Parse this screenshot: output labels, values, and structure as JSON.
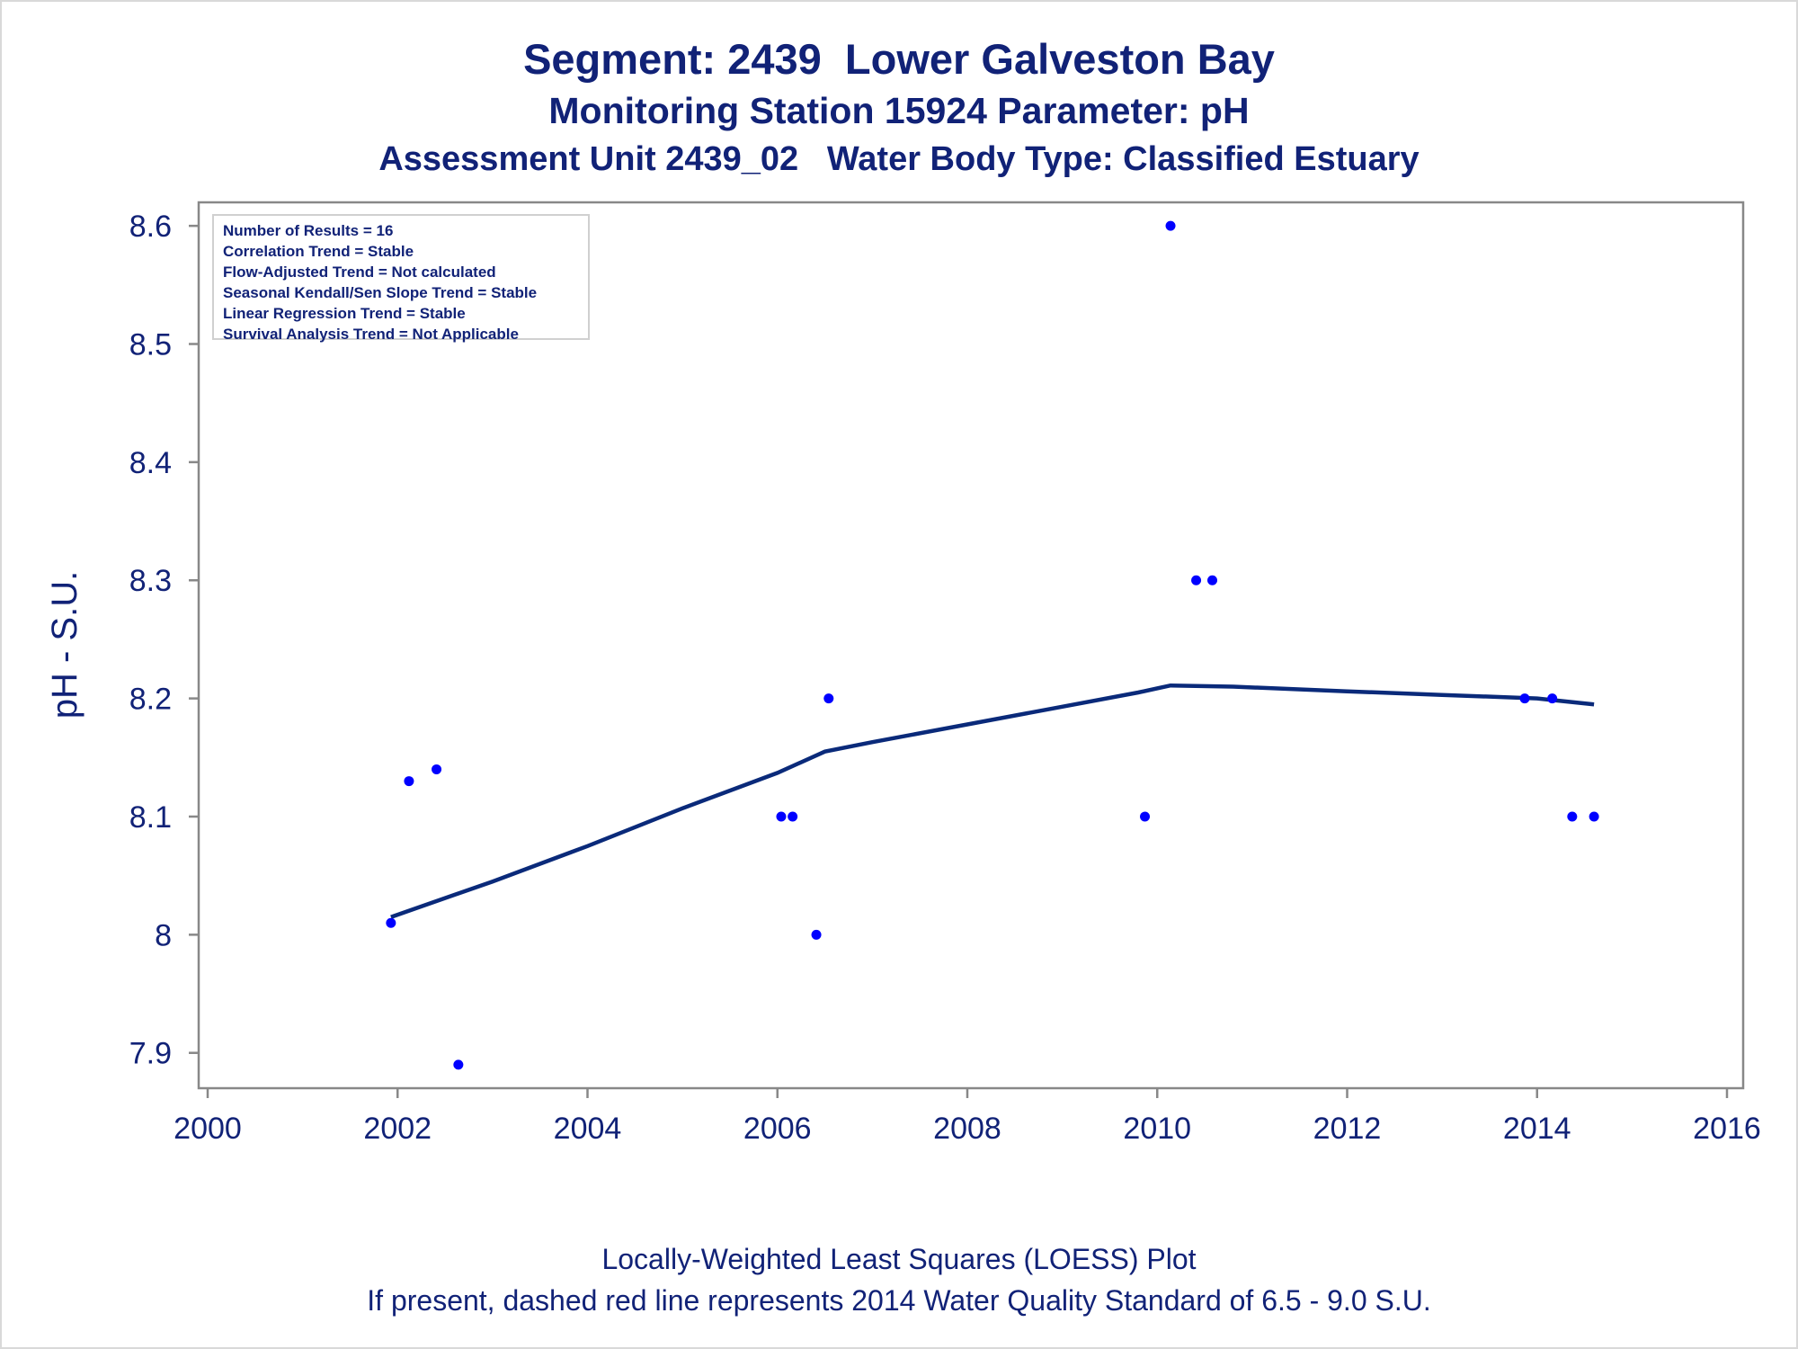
{
  "header": {
    "title": "Segment: 2439  Lower Galveston Bay",
    "subtitle": "Monitoring Station 15924 Parameter: pH",
    "subtitle2": "Assessment Unit 2439_02   Water Body Type: Classified Estuary"
  },
  "stats": [
    "Number of Results = 16",
    "Correlation Trend = Stable",
    "Flow-Adjusted Trend = Not calculated",
    "Seasonal Kendall/Sen Slope Trend = Stable",
    "Linear Regression Trend = Stable",
    "Survival Analysis Trend = Not Applicable"
  ],
  "footer": {
    "line1": "Locally-Weighted Least Squares (LOESS) Plot",
    "line2": "If present, dashed red line represents 2014 Water Quality Standard of 6.5 - 9.0 S.U."
  },
  "colors": {
    "text": "#112277",
    "points": "#0000ff",
    "loess": "#0a2a7a",
    "axis": "#888888"
  },
  "chart_data": {
    "type": "scatter",
    "xlabel": "",
    "ylabel": "pH - S.U.",
    "xlim": [
      2000,
      2016
    ],
    "ylim": [
      7.88,
      8.61
    ],
    "xticks": [
      2000,
      2002,
      2004,
      2006,
      2008,
      2010,
      2012,
      2014,
      2016
    ],
    "yticks": [
      7.9,
      8,
      8.1,
      8.2,
      8.3,
      8.4,
      8.5,
      8.6
    ],
    "ytick_labels": [
      "7.9",
      "8",
      "8.1",
      "8.2",
      "8.3",
      "8.4",
      "8.5",
      "8.6"
    ],
    "grid": false,
    "series": [
      {
        "type": "scatter",
        "points": [
          {
            "x": 2001.93,
            "y": 8.01
          },
          {
            "x": 2002.12,
            "y": 8.13
          },
          {
            "x": 2002.41,
            "y": 8.14
          },
          {
            "x": 2002.64,
            "y": 7.89
          },
          {
            "x": 2006.04,
            "y": 8.1
          },
          {
            "x": 2006.16,
            "y": 8.1
          },
          {
            "x": 2006.41,
            "y": 8.0
          },
          {
            "x": 2006.54,
            "y": 8.2
          },
          {
            "x": 2009.87,
            "y": 8.1
          },
          {
            "x": 2010.14,
            "y": 8.6
          },
          {
            "x": 2010.41,
            "y": 8.3
          },
          {
            "x": 2010.58,
            "y": 8.3
          },
          {
            "x": 2013.87,
            "y": 8.2
          },
          {
            "x": 2014.16,
            "y": 8.2
          },
          {
            "x": 2014.37,
            "y": 8.1
          },
          {
            "x": 2014.6,
            "y": 8.1
          }
        ]
      },
      {
        "type": "line",
        "points": [
          {
            "x": 2001.93,
            "y": 8.015
          },
          {
            "x": 2003.0,
            "y": 8.045
          },
          {
            "x": 2004.0,
            "y": 8.075
          },
          {
            "x": 2005.0,
            "y": 8.107
          },
          {
            "x": 2006.0,
            "y": 8.137
          },
          {
            "x": 2006.5,
            "y": 8.155
          },
          {
            "x": 2007.0,
            "y": 8.163
          },
          {
            "x": 2008.0,
            "y": 8.178
          },
          {
            "x": 2009.0,
            "y": 8.193
          },
          {
            "x": 2009.8,
            "y": 8.205
          },
          {
            "x": 2010.14,
            "y": 8.211
          },
          {
            "x": 2010.8,
            "y": 8.21
          },
          {
            "x": 2012.0,
            "y": 8.206
          },
          {
            "x": 2013.0,
            "y": 8.203
          },
          {
            "x": 2014.0,
            "y": 8.2
          },
          {
            "x": 2014.6,
            "y": 8.195
          }
        ]
      }
    ]
  }
}
